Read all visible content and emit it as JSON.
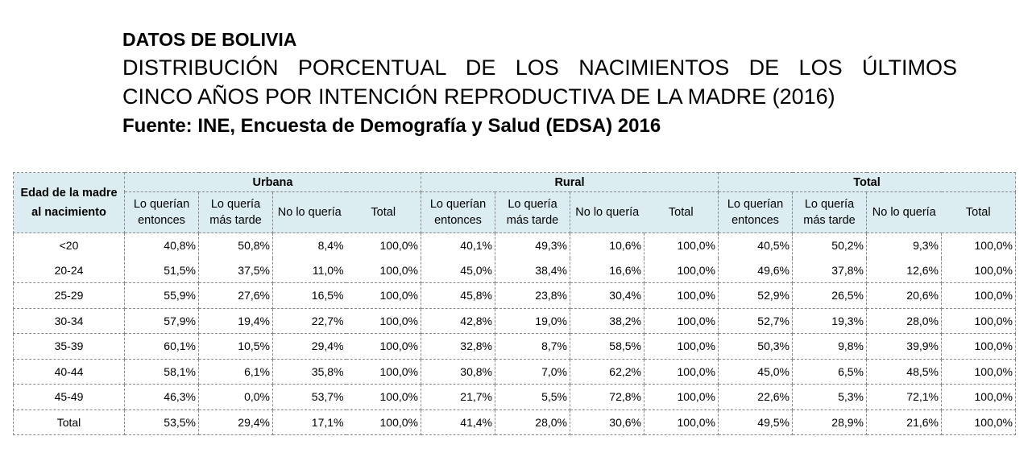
{
  "title": "DATOS DE BOLIVIA",
  "subtitle_line1": "DISTRIBUCIÓN PORCENTUAL DE LOS NACIMIENTOS DE LOS ÚLTIMOS",
  "subtitle_line2": "CINCO AÑOS POR INTENCIÓN REPRODUCTIVA DE LA MADRE (2016)",
  "source": "Fuente: INE, Encuesta de Demografía y Salud (EDSA) 2016",
  "table": {
    "row_header": "Edad de la madre al nacimiento",
    "groups": [
      "Urbana",
      "Rural",
      "Total"
    ],
    "subheaders": [
      [
        "Lo querían",
        "entonces"
      ],
      [
        "Lo quería",
        "más tarde"
      ],
      [
        "No lo quería",
        ""
      ],
      [
        "Total",
        ""
      ]
    ],
    "rows": [
      {
        "age": "<20",
        "values": [
          "40,8%",
          "50,8%",
          "8,4%",
          "100,0%",
          "40,1%",
          "49,3%",
          "10,6%",
          "100,0%",
          "40,5%",
          "50,2%",
          "9,3%",
          "100,0%"
        ]
      },
      {
        "age": "20-24",
        "values": [
          "51,5%",
          "37,5%",
          "11,0%",
          "100,0%",
          "45,0%",
          "38,4%",
          "16,6%",
          "100,0%",
          "49,6%",
          "37,8%",
          "12,6%",
          "100,0%"
        ]
      },
      {
        "age": "25-29",
        "values": [
          "55,9%",
          "27,6%",
          "16,5%",
          "100,0%",
          "45,8%",
          "23,8%",
          "30,4%",
          "100,0%",
          "52,9%",
          "26,5%",
          "20,6%",
          "100,0%"
        ]
      },
      {
        "age": "30-34",
        "values": [
          "57,9%",
          "19,4%",
          "22,7%",
          "100,0%",
          "42,8%",
          "19,0%",
          "38,2%",
          "100,0%",
          "52,7%",
          "19,3%",
          "28,0%",
          "100,0%"
        ]
      },
      {
        "age": "35-39",
        "values": [
          "60,1%",
          "10,5%",
          "29,4%",
          "100,0%",
          "32,8%",
          "8,7%",
          "58,5%",
          "100,0%",
          "50,3%",
          "9,8%",
          "39,9%",
          "100,0%"
        ]
      },
      {
        "age": "40-44",
        "values": [
          "58,1%",
          "6,1%",
          "35,8%",
          "100,0%",
          "30,8%",
          "7,0%",
          "62,2%",
          "100,0%",
          "45,0%",
          "6,5%",
          "48,5%",
          "100,0%"
        ]
      },
      {
        "age": "45-49",
        "values": [
          "46,3%",
          "0,0%",
          "53,7%",
          "100,0%",
          "21,7%",
          "5,5%",
          "72,8%",
          "100,0%",
          "22,6%",
          "5,3%",
          "72,1%",
          "100,0%"
        ]
      },
      {
        "age": "Total",
        "values": [
          "53,5%",
          "29,4%",
          "17,1%",
          "100,0%",
          "41,4%",
          "28,0%",
          "30,6%",
          "100,0%",
          "49,5%",
          "28,9%",
          "21,6%",
          "100,0%"
        ]
      }
    ]
  }
}
